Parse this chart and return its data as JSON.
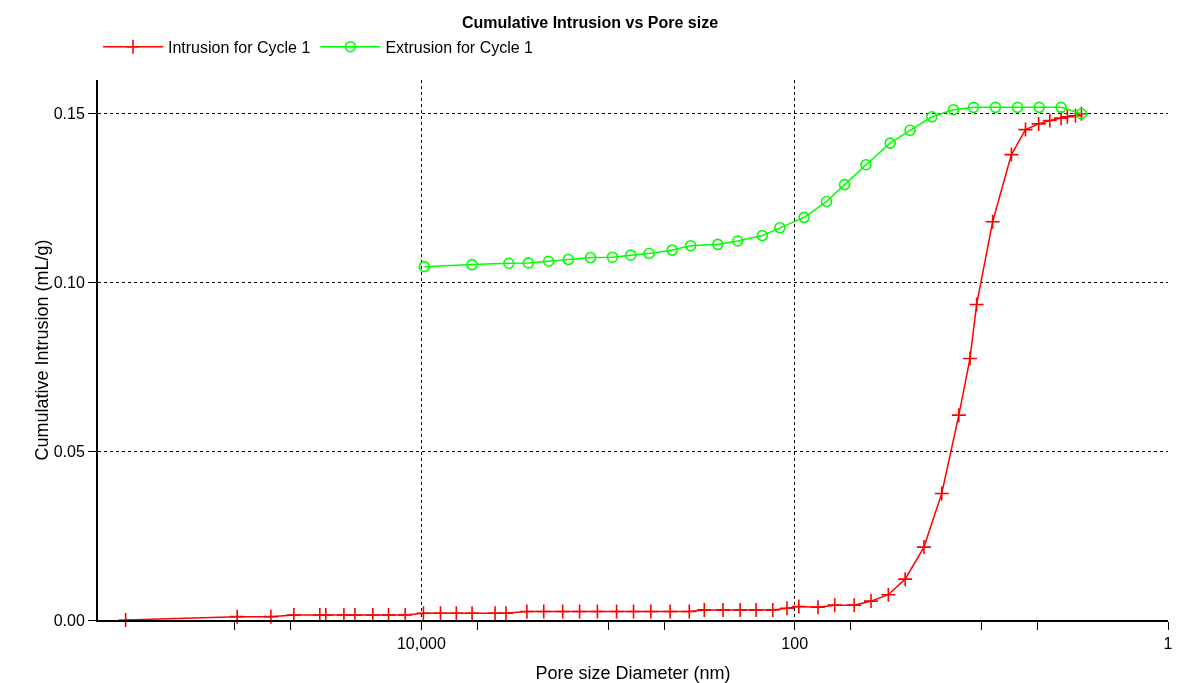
{
  "chart_data": {
    "type": "line",
    "title": "Cumulative Intrusion vs Pore size",
    "xlabel": "Pore size Diameter (nm)",
    "ylabel": "Cumulative Intrusion (mL/g)",
    "log": "x",
    "grid": true,
    "legend": "top left",
    "line_style": "solid",
    "xlim": [
      540000,
      1
    ],
    "xticks": [
      {
        "value": 100000,
        "label": null
      },
      {
        "value": 50000,
        "label": null
      },
      {
        "value": 10000,
        "label": "10,000"
      },
      {
        "value": 5000,
        "label": null
      },
      {
        "value": 1000,
        "label": null
      },
      {
        "value": 500,
        "label": null
      },
      100,
      {
        "value": 50,
        "label": null
      },
      {
        "value": 10,
        "label": null
      },
      {
        "value": 5,
        "label": null
      },
      1
    ],
    "ylim": [
      0,
      0.16
    ],
    "yticks": [
      {
        "value": 0,
        "label": "0.00"
      },
      {
        "value": 0.05,
        "label": "0.05"
      },
      {
        "value": 0.1,
        "label": "0.10"
      },
      0.15
    ],
    "series": [
      {
        "name": "Intrusion for Cycle 1",
        "color": "#ff0000",
        "marker": "cross",
        "x": [
          384000,
          97000,
          64000,
          48200,
          35000,
          32500,
          26000,
          22700,
          18200,
          15000,
          12200,
          9750,
          7900,
          6500,
          5350,
          4030,
          3520,
          2720,
          2210,
          1750,
          1420,
          1140,
          900,
          730,
          590,
          465,
          367,
          305,
          242,
          196,
          161,
          131,
          110,
          95,
          75,
          61,
          48,
          39,
          31.5,
          25.6,
          20.3,
          16.3,
          13.2,
          11.5,
          10.6,
          8.7,
          6.9,
          5.8,
          4.93,
          4.3,
          3.74,
          3.46,
          3.13,
          2.91
        ],
        "values": [
          0,
          0.001,
          0.001,
          0.0015,
          0.0015,
          0.0015,
          0.0015,
          0.0015,
          0.0015,
          0.0015,
          0.0015,
          0.002,
          0.002,
          0.002,
          0.002,
          0.002,
          0.002,
          0.0025,
          0.0025,
          0.0025,
          0.0025,
          0.0025,
          0.0025,
          0.0025,
          0.0025,
          0.0025,
          0.0025,
          0.003,
          0.003,
          0.003,
          0.003,
          0.003,
          0.0035,
          0.004,
          0.0038,
          0.0044,
          0.0044,
          0.0056,
          0.0075,
          0.0121,
          0.0216,
          0.0375,
          0.0607,
          0.0775,
          0.0935,
          0.118,
          0.1379,
          0.1453,
          0.147,
          0.148,
          0.1487,
          0.1491,
          0.1494,
          0.15
        ]
      },
      {
        "name": "Extrusion for Cycle 1",
        "color": "#00ff00",
        "marker": "circle",
        "x": [
          9640,
          5350,
          3400,
          2670,
          2080,
          1630,
          1240,
          946,
          755,
          603,
          453,
          361,
          258,
          202,
          149,
          120,
          89,
          67.5,
          54,
          41.5,
          30.8,
          24.1,
          18.4,
          14.1,
          11.0,
          8.4,
          6.4,
          4.9,
          3.74,
          2.91
        ],
        "values": [
          0.1047,
          0.1053,
          0.1057,
          0.1058,
          0.1063,
          0.1068,
          0.1074,
          0.1075,
          0.1081,
          0.1086,
          0.1096,
          0.1109,
          0.1113,
          0.1123,
          0.1139,
          0.1162,
          0.1193,
          0.124,
          0.129,
          0.1349,
          0.1413,
          0.1451,
          0.1491,
          0.1512,
          0.1519,
          0.1519,
          0.1519,
          0.1519,
          0.1519,
          0.15
        ]
      }
    ]
  }
}
